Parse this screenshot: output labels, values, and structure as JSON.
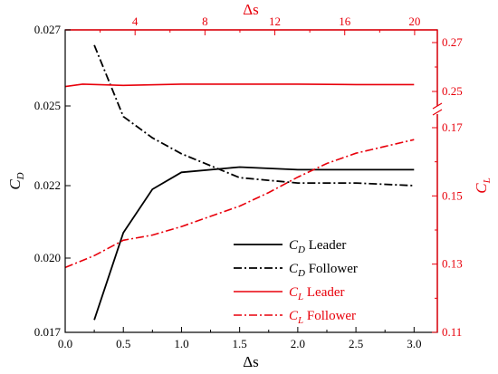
{
  "chart_data": {
    "type": "line",
    "x_bottom": {
      "label": "Δs",
      "lim": [
        0.0,
        3.2
      ],
      "ticks": [
        0.0,
        0.5,
        1.0,
        1.5,
        2.0,
        2.5,
        3.0
      ],
      "tick_labels": [
        "0.0",
        "0.5",
        "1.0",
        "1.5",
        "2.0",
        "2.5",
        "3.0"
      ]
    },
    "x_top": {
      "label": "Δs",
      "ticks": [
        4,
        8,
        12,
        16,
        20
      ],
      "tick_labels": [
        "4",
        "8",
        "12",
        "16",
        "20"
      ],
      "lim": [
        0,
        21.3
      ]
    },
    "y_left": {
      "label": "C_D",
      "tick_values": [
        0.017,
        0.02,
        0.022,
        0.025,
        0.027
      ],
      "tick_labels": [
        "0.017",
        "0.020",
        "0.022",
        "0.025",
        "0.027"
      ],
      "color": "#000000"
    },
    "y_right": {
      "label": "C_L",
      "tick_values": [
        0.11,
        0.13,
        0.15,
        0.17,
        0.25,
        0.27
      ],
      "tick_labels": [
        "0.11",
        "0.13",
        "0.15",
        "0.17",
        "0.25",
        "0.27"
      ],
      "break_between": [
        0.17,
        0.25
      ],
      "color": "#e8000b"
    },
    "series": [
      {
        "name_main": "C",
        "name_sub": "D",
        "name_rest": " Leader",
        "axis": "left",
        "color": "#000000",
        "dash": "solid",
        "x": [
          0.25,
          0.5,
          0.75,
          1.0,
          1.5,
          2.0,
          2.5,
          3.0
        ],
        "y": [
          0.0175,
          0.0207,
          0.0219,
          0.0225,
          0.0227,
          0.0226,
          0.0226,
          0.0226
        ]
      },
      {
        "name_main": "C",
        "name_sub": "D",
        "name_rest": " Follower",
        "axis": "left",
        "color": "#000000",
        "dash": "dashdot",
        "x": [
          0.25,
          0.5,
          0.75,
          1.0,
          1.5,
          2.0,
          2.5,
          3.0
        ],
        "y": [
          0.0266,
          0.0246,
          0.0238,
          0.0232,
          0.0223,
          0.0221,
          0.0221,
          0.022
        ]
      },
      {
        "name_main": "C",
        "name_sub": "L",
        "name_rest": " Leader",
        "axis": "right",
        "color": "#e8000b",
        "dash": "solid",
        "x": [
          0.0,
          0.15,
          0.5,
          1.0,
          1.5,
          2.0,
          2.5,
          3.0
        ],
        "y": [
          0.252,
          0.253,
          0.2525,
          0.253,
          0.253,
          0.253,
          0.2528,
          0.2528
        ]
      },
      {
        "name_main": "C",
        "name_sub": "L",
        "name_rest": " Follower",
        "axis": "right",
        "color": "#e8000b",
        "dash": "dashdot",
        "x": [
          0.0,
          0.25,
          0.5,
          0.75,
          1.0,
          1.25,
          1.5,
          1.75,
          2.0,
          2.25,
          2.5,
          2.75,
          3.0
        ],
        "y": [
          0.129,
          0.1325,
          0.137,
          0.1385,
          0.141,
          0.144,
          0.147,
          0.151,
          0.1555,
          0.1595,
          0.1625,
          0.1645,
          0.1665
        ]
      }
    ]
  }
}
